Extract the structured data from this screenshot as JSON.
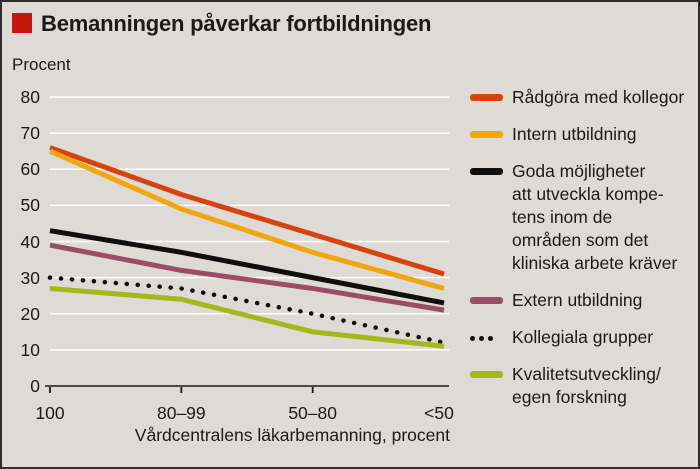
{
  "header": {
    "title": "Bemanningen påverkar fortbildningen"
  },
  "chart_data": {
    "type": "line",
    "title": "Bemanningen påverkar fortbildningen",
    "unit_label": "Procent",
    "xlabel": "Vårdcentralens läkarbemanning, procent",
    "categories": [
      "100",
      "80–99",
      "50–80",
      "<50"
    ],
    "ylim": [
      0,
      80
    ],
    "ytick_step": 10,
    "grid": true,
    "legend_position": "right",
    "series": [
      {
        "name": "Rådgöra med kollegor",
        "values": [
          66,
          53,
          42,
          31
        ],
        "color": "#d7430e",
        "style": "solid"
      },
      {
        "name": "Intern utbildning",
        "values": [
          65,
          49,
          37,
          27
        ],
        "color": "#f2a60e",
        "style": "solid"
      },
      {
        "name": "Goda möjligheter\natt utveckla kompe-\ntens inom de\nområden som det\nkliniska arbete kräver",
        "values": [
          43,
          37,
          30,
          23
        ],
        "color": "#0e0e0e",
        "style": "solid"
      },
      {
        "name": "Extern utbildning",
        "values": [
          39,
          32,
          27,
          21
        ],
        "color": "#9d4c67",
        "style": "solid"
      },
      {
        "name": "Kollegiala grupper",
        "values": [
          30,
          27,
          20,
          12
        ],
        "color": "#0e0e0e",
        "style": "dotted"
      },
      {
        "name": "Kvalitetsutveckling/\negen forskning",
        "values": [
          27,
          24,
          15,
          11
        ],
        "color": "#a4b71b",
        "style": "solid"
      }
    ]
  },
  "colors": {
    "background": "#dedad6",
    "frame": "#2f2d2b",
    "title_bullet": "#c6170f",
    "gridline": "#ffffff",
    "axis": "#1a1a1a",
    "text": "#1a1a1a"
  }
}
